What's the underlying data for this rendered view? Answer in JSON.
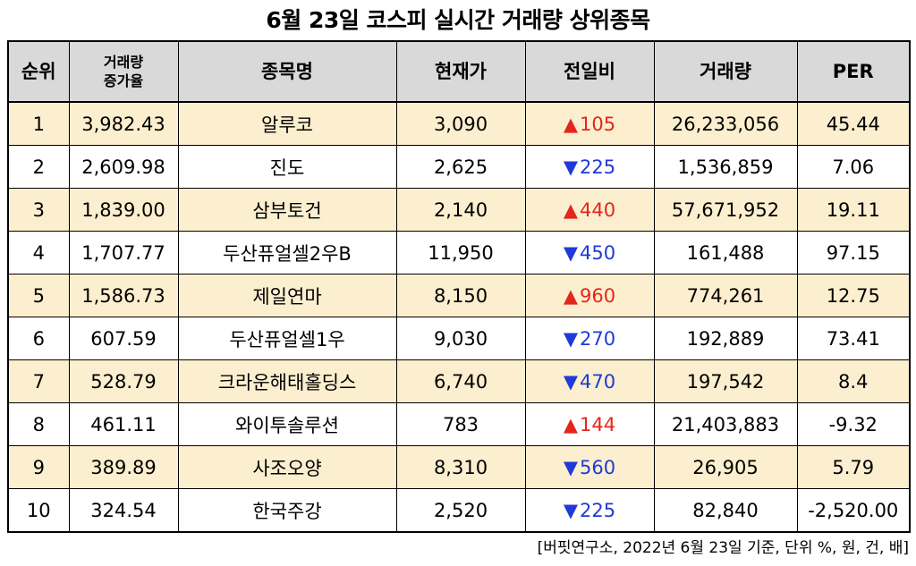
{
  "title": "6월 23일 코스피 실시간 거래량 상위종목",
  "headers": {
    "rank": "순위",
    "volume_increase_line1": "거래량",
    "volume_increase_line2": "증가율",
    "name": "종목명",
    "price": "현재가",
    "change": "전일비",
    "volume": "거래량",
    "per": "PER"
  },
  "rows": [
    {
      "rank": "1",
      "increase": "3,982.43",
      "name": "알루코",
      "price": "3,090",
      "direction": "up",
      "arrow": "▲",
      "change": "105",
      "volume": "26,233,056",
      "per": "45.44"
    },
    {
      "rank": "2",
      "increase": "2,609.98",
      "name": "진도",
      "price": "2,625",
      "direction": "down",
      "arrow": "▼",
      "change": "225",
      "volume": "1,536,859",
      "per": "7.06"
    },
    {
      "rank": "3",
      "increase": "1,839.00",
      "name": "삼부토건",
      "price": "2,140",
      "direction": "up",
      "arrow": "▲",
      "change": "440",
      "volume": "57,671,952",
      "per": "19.11"
    },
    {
      "rank": "4",
      "increase": "1,707.77",
      "name": "두산퓨얼셀2우B",
      "price": "11,950",
      "direction": "down",
      "arrow": "▼",
      "change": "450",
      "volume": "161,488",
      "per": "97.15"
    },
    {
      "rank": "5",
      "increase": "1,586.73",
      "name": "제일연마",
      "price": "8,150",
      "direction": "up",
      "arrow": "▲",
      "change": "960",
      "volume": "774,261",
      "per": "12.75"
    },
    {
      "rank": "6",
      "increase": "607.59",
      "name": "두산퓨얼셀1우",
      "price": "9,030",
      "direction": "down",
      "arrow": "▼",
      "change": "270",
      "volume": "192,889",
      "per": "73.41"
    },
    {
      "rank": "7",
      "increase": "528.79",
      "name": "크라운해태홀딩스",
      "price": "6,740",
      "direction": "down",
      "arrow": "▼",
      "change": "470",
      "volume": "197,542",
      "per": "8.4"
    },
    {
      "rank": "8",
      "increase": "461.11",
      "name": "와이투솔루션",
      "price": "783",
      "direction": "up",
      "arrow": "▲",
      "change": "144",
      "volume": "21,403,883",
      "per": "-9.32"
    },
    {
      "rank": "9",
      "increase": "389.89",
      "name": "사조오양",
      "price": "8,310",
      "direction": "down",
      "arrow": "▼",
      "change": "560",
      "volume": "26,905",
      "per": "5.79"
    },
    {
      "rank": "10",
      "increase": "324.54",
      "name": "한국주강",
      "price": "2,520",
      "direction": "down",
      "arrow": "▼",
      "change": "225",
      "volume": "82,840",
      "per": "-2,520.00"
    }
  ],
  "source": "[버핏연구소, 2022년 6월 23일 기준, 단위 %, 원, 건, 배]",
  "colors": {
    "header_bg": "#d9d9d9",
    "odd_row_bg": "#fcefcf",
    "even_row_bg": "#ffffff",
    "up": "#e4261d",
    "down": "#1f3ad6"
  }
}
